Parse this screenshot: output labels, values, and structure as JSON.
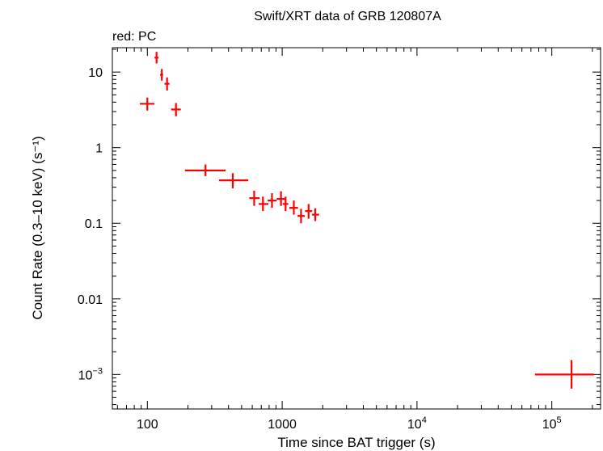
{
  "chart_data": {
    "type": "scatter",
    "title": "Swift/XRT data of GRB 120807A",
    "subtitle": "red: PC",
    "xlabel": "Time since BAT trigger (s)",
    "ylabel": "Count Rate (0.3–10 keV) (s⁻¹)",
    "x_scale": "log",
    "y_scale": "log",
    "xlim": [
      55,
      230000
    ],
    "ylim": [
      0.00035,
      21
    ],
    "grid": false,
    "x_ticks": [
      {
        "value": 100,
        "label": "100"
      },
      {
        "value": 1000,
        "label": "1000"
      },
      {
        "value": 10000,
        "base": "10",
        "exp": "4"
      },
      {
        "value": 100000,
        "base": "10",
        "exp": "5"
      }
    ],
    "y_ticks": [
      {
        "value": 10,
        "label": "10"
      },
      {
        "value": 1,
        "label": "1"
      },
      {
        "value": 0.1,
        "label": "0.1"
      },
      {
        "value": 0.01,
        "label": "0.01"
      },
      {
        "value": 0.001,
        "base": "10",
        "exp": "−3"
      }
    ],
    "series": [
      {
        "color": "#ff0000",
        "points": [
          {
            "x": 100,
            "xlo": 88,
            "xhi": 113,
            "y": 3.8,
            "ylo": 3.1,
            "yhi": 4.6
          },
          {
            "x": 117,
            "xlo": 113,
            "xhi": 121,
            "y": 15.5,
            "ylo": 13.0,
            "yhi": 18.5
          },
          {
            "x": 128,
            "xlo": 124,
            "xhi": 131,
            "y": 9.2,
            "ylo": 7.7,
            "yhi": 11.0
          },
          {
            "x": 140,
            "xlo": 134,
            "xhi": 146,
            "y": 7.0,
            "ylo": 5.7,
            "yhi": 8.5
          },
          {
            "x": 163,
            "xlo": 150,
            "xhi": 177,
            "y": 3.2,
            "ylo": 2.6,
            "yhi": 3.9
          },
          {
            "x": 270,
            "xlo": 190,
            "xhi": 380,
            "y": 0.5,
            "ylo": 0.42,
            "yhi": 0.6
          },
          {
            "x": 430,
            "xlo": 340,
            "xhi": 560,
            "y": 0.37,
            "ylo": 0.29,
            "yhi": 0.46
          },
          {
            "x": 620,
            "xlo": 570,
            "xhi": 680,
            "y": 0.215,
            "ylo": 0.17,
            "yhi": 0.27
          },
          {
            "x": 720,
            "xlo": 670,
            "xhi": 790,
            "y": 0.18,
            "ylo": 0.145,
            "yhi": 0.225
          },
          {
            "x": 840,
            "xlo": 780,
            "xhi": 910,
            "y": 0.2,
            "ylo": 0.16,
            "yhi": 0.25
          },
          {
            "x": 980,
            "xlo": 910,
            "xhi": 1060,
            "y": 0.21,
            "ylo": 0.17,
            "yhi": 0.265
          },
          {
            "x": 1060,
            "xlo": 1010,
            "xhi": 1110,
            "y": 0.18,
            "ylo": 0.145,
            "yhi": 0.225
          },
          {
            "x": 1220,
            "xlo": 1130,
            "xhi": 1310,
            "y": 0.16,
            "ylo": 0.13,
            "yhi": 0.2
          },
          {
            "x": 1380,
            "xlo": 1300,
            "xhi": 1470,
            "y": 0.125,
            "ylo": 0.1,
            "yhi": 0.155
          },
          {
            "x": 1570,
            "xlo": 1480,
            "xhi": 1670,
            "y": 0.145,
            "ylo": 0.115,
            "yhi": 0.18
          },
          {
            "x": 1760,
            "xlo": 1660,
            "xhi": 1880,
            "y": 0.13,
            "ylo": 0.107,
            "yhi": 0.158
          },
          {
            "x": 140000,
            "xlo": 75000,
            "xhi": 205000,
            "y": 0.001,
            "ylo": 0.00065,
            "yhi": 0.00155
          }
        ]
      }
    ]
  }
}
